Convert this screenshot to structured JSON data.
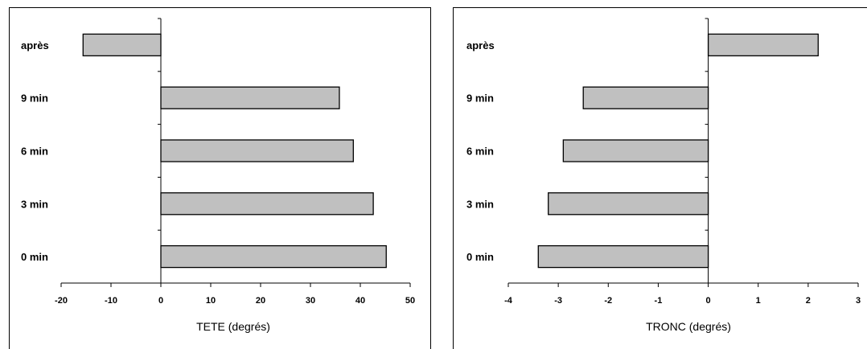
{
  "chart_data": [
    {
      "type": "bar",
      "orientation": "horizontal",
      "categories": [
        "0 min",
        "3 min",
        "6 min",
        "9 min",
        "après"
      ],
      "values": [
        45.2,
        42.6,
        38.6,
        35.8,
        -15.6
      ],
      "xlabel": "TETE (degrés)",
      "xlim": [
        -20,
        50
      ],
      "xticks": [
        "-20",
        "-10",
        "0",
        "10",
        "20",
        "30",
        "40",
        "50"
      ],
      "bar_color": "#c0c0c0",
      "grid": false
    },
    {
      "type": "bar",
      "orientation": "horizontal",
      "categories": [
        "0 min",
        "3 min",
        "6 min",
        "9 min",
        "après"
      ],
      "values": [
        -3.4,
        -3.2,
        -2.9,
        -2.5,
        2.2
      ],
      "xlabel": "TRONC (degrés)",
      "xlim": [
        -4,
        3
      ],
      "xticks": [
        "-4",
        "-3",
        "-2",
        "-1",
        "0",
        "1",
        "2",
        "3"
      ],
      "bar_color": "#c0c0c0",
      "grid": false
    }
  ]
}
